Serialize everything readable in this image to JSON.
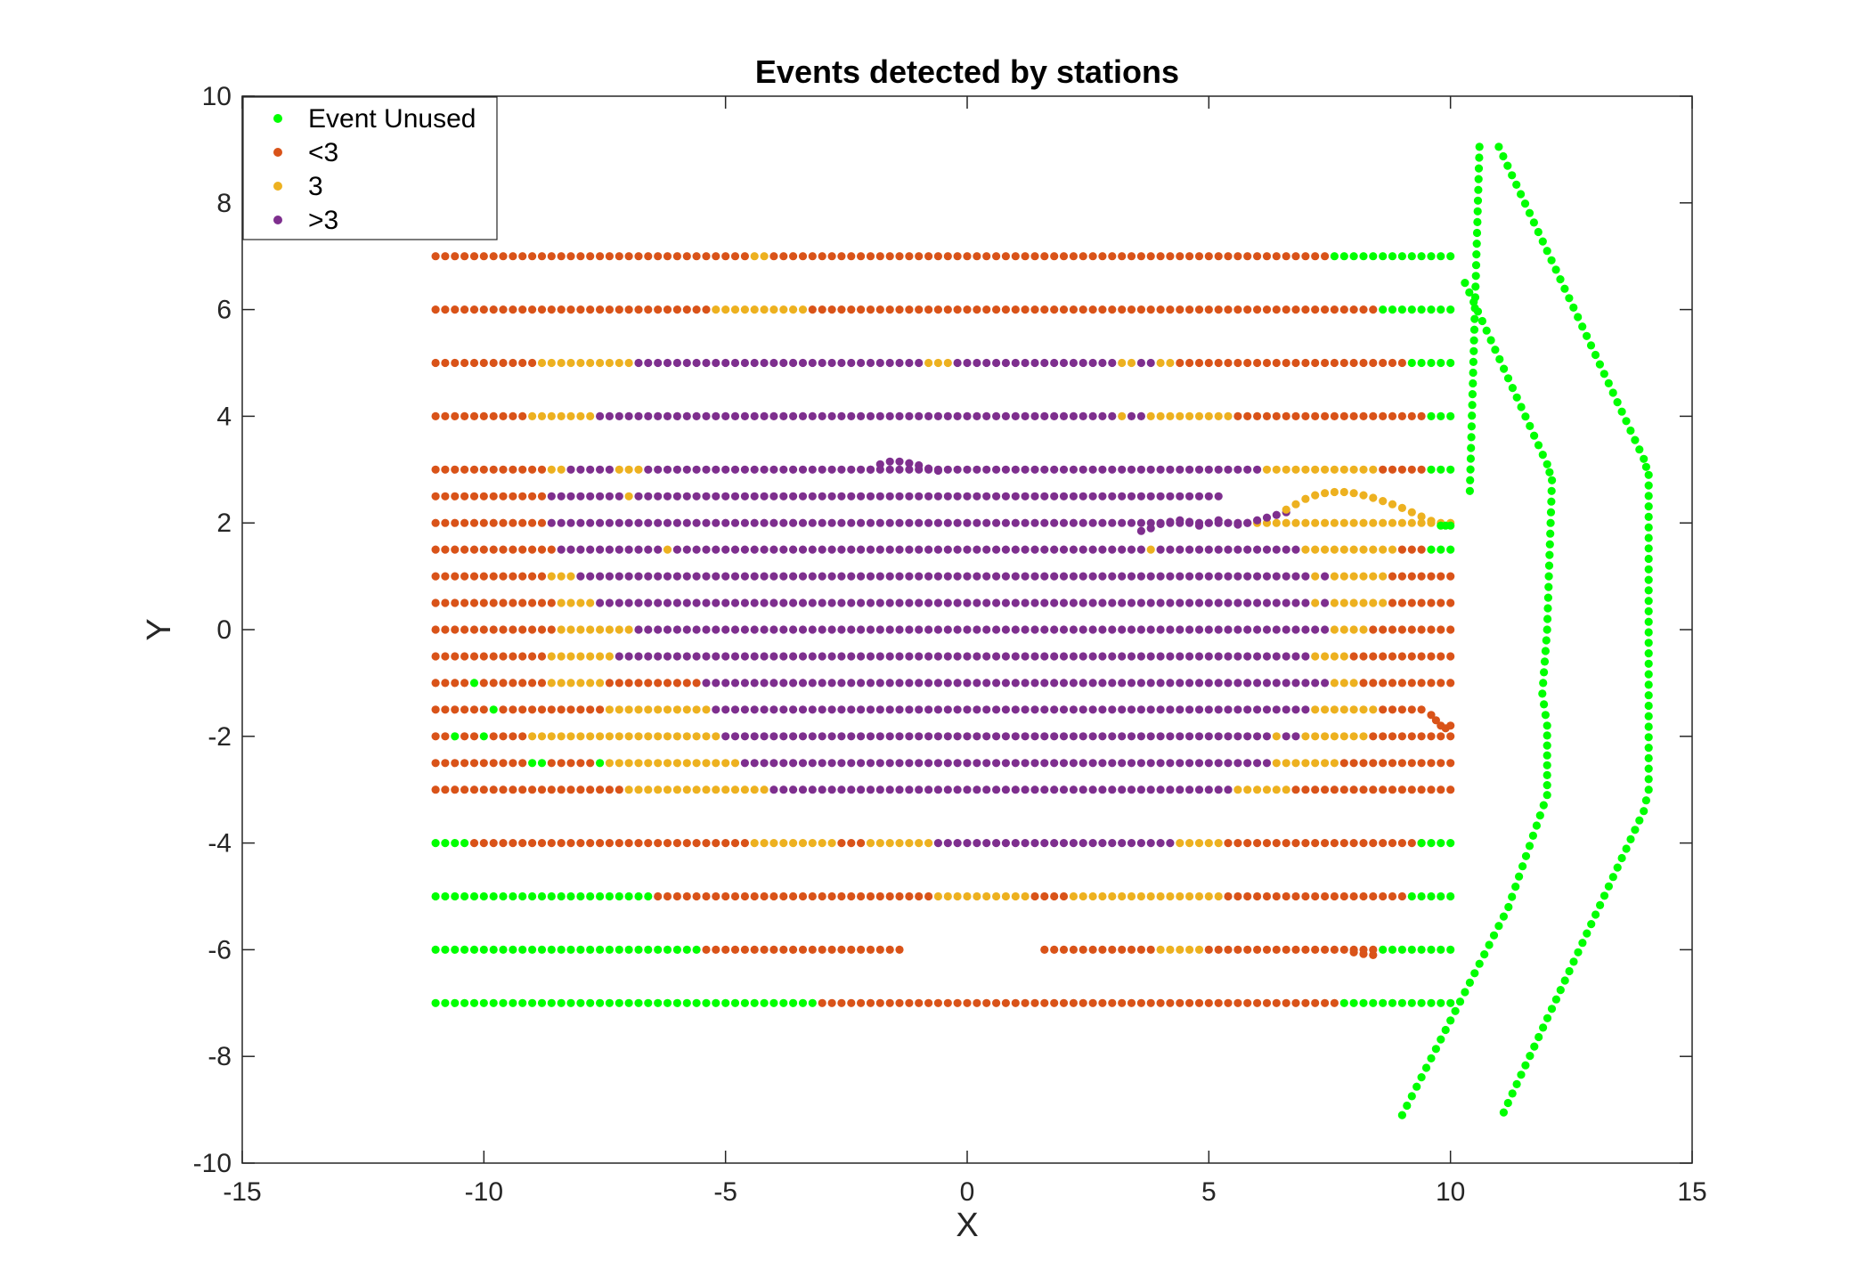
{
  "chart_data": {
    "type": "scatter",
    "title": "Events detected by stations",
    "xlabel": "X",
    "ylabel": "Y",
    "xlim": [
      -15,
      15
    ],
    "ylim": [
      -10,
      10
    ],
    "xticks": [
      "-15",
      "-10",
      "-5",
      "0",
      "5",
      "10",
      "15"
    ],
    "yticks": [
      "-10",
      "-8",
      "-6",
      "-4",
      "-2",
      "0",
      "2",
      "4",
      "6",
      "8",
      "10"
    ],
    "grid": false,
    "legend_position": "top-left",
    "legend": [
      {
        "key": "unused",
        "label": "Event Unused",
        "color": "#00ff00"
      },
      {
        "key": "lt3",
        "label": "<3",
        "color": "#d95319"
      },
      {
        "key": "eq3",
        "label": "3",
        "color": "#edb120"
      },
      {
        "key": "gt3",
        "label": ">3",
        "color": "#7e2f8e"
      }
    ],
    "point_spacing": 0.2,
    "rows": [
      {
        "y": 7,
        "segments": [
          [
            -11,
            7.6,
            "lt3"
          ],
          [
            7.6,
            10,
            "unused"
          ]
        ],
        "overrides": [
          [
            -4.4,
            -4.2,
            "eq3"
          ]
        ]
      },
      {
        "y": 6,
        "segments": [
          [
            -11,
            -5.2,
            "lt3"
          ],
          [
            -5.2,
            -3.2,
            "eq3"
          ],
          [
            -3.2,
            8.6,
            "lt3"
          ],
          [
            8.6,
            10,
            "unused"
          ]
        ]
      },
      {
        "y": 5,
        "segments": [
          [
            -11,
            -8.8,
            "lt3"
          ],
          [
            -8.8,
            -6.8,
            "eq3"
          ],
          [
            -6.8,
            -0.8,
            "gt3"
          ],
          [
            -0.8,
            -0.2,
            "eq3"
          ],
          [
            -0.2,
            3.2,
            "gt3"
          ],
          [
            3.2,
            3.6,
            "eq3"
          ],
          [
            3.6,
            4,
            "gt3"
          ],
          [
            4,
            4.4,
            "eq3"
          ],
          [
            4.4,
            9.2,
            "lt3"
          ],
          [
            9.2,
            10,
            "unused"
          ]
        ]
      },
      {
        "y": 4,
        "segments": [
          [
            -11,
            -9,
            "lt3"
          ],
          [
            -9,
            -7.6,
            "eq3"
          ],
          [
            -7.6,
            3.2,
            "gt3"
          ],
          [
            3.2,
            3.4,
            "eq3"
          ],
          [
            3.4,
            3.8,
            "gt3"
          ],
          [
            3.8,
            5.6,
            "eq3"
          ],
          [
            5.6,
            9.6,
            "lt3"
          ],
          [
            9.6,
            10,
            "unused"
          ]
        ]
      },
      {
        "y": 3,
        "segments": [
          [
            -11,
            -8.6,
            "lt3"
          ],
          [
            -8.6,
            -8.2,
            "eq3"
          ],
          [
            -8.2,
            -7.2,
            "gt3"
          ],
          [
            -7.2,
            -6.6,
            "eq3"
          ],
          [
            -6.6,
            6.2,
            "gt3"
          ],
          [
            6.2,
            8.6,
            "eq3"
          ],
          [
            8.6,
            9.6,
            "lt3"
          ],
          [
            9.6,
            10,
            "unused"
          ]
        ]
      },
      {
        "y": 2.5,
        "segments": [
          [
            -11,
            -8.6,
            "lt3"
          ],
          [
            -8.6,
            -7,
            "gt3"
          ],
          [
            -7,
            -6.8,
            "eq3"
          ],
          [
            -6.8,
            5.2,
            "gt3"
          ]
        ]
      },
      {
        "y": 2,
        "segments": [
          [
            -11,
            -8.6,
            "lt3"
          ],
          [
            -8.6,
            3.6,
            "gt3"
          ],
          [
            3.6,
            6,
            "gt3"
          ],
          [
            6,
            10,
            "eq3"
          ]
        ]
      },
      {
        "y": 1.5,
        "segments": [
          [
            -11,
            -8.4,
            "lt3"
          ],
          [
            -8.4,
            -6.2,
            "gt3"
          ],
          [
            -6.2,
            -6,
            "eq3"
          ],
          [
            -6,
            3.8,
            "gt3"
          ],
          [
            3.8,
            4,
            "eq3"
          ],
          [
            4,
            7,
            "gt3"
          ],
          [
            7,
            9,
            "eq3"
          ],
          [
            9,
            9.6,
            "lt3"
          ],
          [
            9.6,
            10,
            "unused"
          ]
        ]
      },
      {
        "y": 1,
        "segments": [
          [
            -11,
            -8.6,
            "lt3"
          ],
          [
            -8.6,
            -8,
            "eq3"
          ],
          [
            -8,
            7.2,
            "gt3"
          ],
          [
            7.2,
            7.4,
            "eq3"
          ],
          [
            7.4,
            7.6,
            "gt3"
          ],
          [
            7.6,
            8.8,
            "eq3"
          ],
          [
            8.8,
            10,
            "lt3"
          ]
        ]
      },
      {
        "y": 0.5,
        "segments": [
          [
            -11,
            -8.4,
            "lt3"
          ],
          [
            -8.4,
            -7.6,
            "eq3"
          ],
          [
            -7.6,
            7.2,
            "gt3"
          ],
          [
            7.2,
            7.4,
            "eq3"
          ],
          [
            7.4,
            7.6,
            "gt3"
          ],
          [
            7.6,
            8.8,
            "eq3"
          ],
          [
            8.8,
            10,
            "lt3"
          ]
        ]
      },
      {
        "y": 0,
        "segments": [
          [
            -11,
            -8.4,
            "lt3"
          ],
          [
            -8.4,
            -6.8,
            "eq3"
          ],
          [
            -6.8,
            7.6,
            "gt3"
          ],
          [
            7.6,
            8.4,
            "eq3"
          ],
          [
            8.4,
            10,
            "lt3"
          ]
        ]
      },
      {
        "y": -0.5,
        "segments": [
          [
            -11,
            -8.6,
            "lt3"
          ],
          [
            -8.6,
            -7.2,
            "eq3"
          ],
          [
            -7.2,
            7.2,
            "gt3"
          ],
          [
            7.2,
            8,
            "eq3"
          ],
          [
            8,
            10,
            "lt3"
          ]
        ]
      },
      {
        "y": -1,
        "segments": [
          [
            -11,
            -8.6,
            "lt3"
          ],
          [
            -8.6,
            -7.4,
            "eq3"
          ],
          [
            -7.4,
            -5.4,
            "lt3"
          ],
          [
            -5.4,
            7.6,
            "gt3"
          ],
          [
            7.6,
            8.2,
            "eq3"
          ],
          [
            8.2,
            10,
            "lt3"
          ]
        ],
        "overrides": [
          [
            -10.2,
            -10.2,
            "unused"
          ]
        ]
      },
      {
        "y": -1.5,
        "segments": [
          [
            -11,
            -7.4,
            "lt3"
          ],
          [
            -7.4,
            -5.2,
            "eq3"
          ],
          [
            -5.2,
            7.2,
            "gt3"
          ],
          [
            7.2,
            8.6,
            "eq3"
          ],
          [
            8.6,
            9.4,
            "lt3"
          ]
        ],
        "overrides": [
          [
            -9.8,
            -9.8,
            "unused"
          ]
        ]
      },
      {
        "y": -2,
        "segments": [
          [
            -11,
            -9,
            "lt3"
          ],
          [
            -9,
            -5,
            "eq3"
          ],
          [
            -5,
            6.4,
            "gt3"
          ],
          [
            6.4,
            6.6,
            "eq3"
          ],
          [
            6.6,
            7,
            "gt3"
          ],
          [
            7,
            8.4,
            "eq3"
          ],
          [
            8.4,
            10,
            "lt3"
          ]
        ],
        "overrides": [
          [
            -10.6,
            -10.6,
            "unused"
          ],
          [
            -10,
            -10,
            "unused"
          ]
        ]
      },
      {
        "y": -2.5,
        "segments": [
          [
            -11,
            -7.6,
            "lt3"
          ],
          [
            -7.6,
            -4.6,
            "eq3"
          ],
          [
            -4.6,
            6.4,
            "gt3"
          ],
          [
            6.4,
            7.8,
            "eq3"
          ],
          [
            7.8,
            10,
            "lt3"
          ]
        ],
        "overrides": [
          [
            -9,
            -8.8,
            "unused"
          ],
          [
            -7.6,
            -7.6,
            "unused"
          ]
        ]
      },
      {
        "y": -3,
        "segments": [
          [
            -11,
            -7,
            "lt3"
          ],
          [
            -7,
            -4,
            "eq3"
          ],
          [
            -4,
            5.6,
            "gt3"
          ],
          [
            5.6,
            6.8,
            "eq3"
          ],
          [
            6.8,
            10,
            "lt3"
          ]
        ]
      },
      {
        "y": -4,
        "segments": [
          [
            -11,
            -10.2,
            "unused"
          ],
          [
            -10.2,
            -4.4,
            "lt3"
          ],
          [
            -4.4,
            -2.6,
            "eq3"
          ],
          [
            -2.6,
            -2,
            "lt3"
          ],
          [
            -2,
            -0.6,
            "eq3"
          ],
          [
            -0.6,
            4.4,
            "gt3"
          ],
          [
            4.4,
            5.4,
            "eq3"
          ],
          [
            5.4,
            9.4,
            "lt3"
          ],
          [
            9.4,
            10,
            "unused"
          ]
        ]
      },
      {
        "y": -5,
        "segments": [
          [
            -11,
            -6.4,
            "unused"
          ],
          [
            -6.4,
            -0.6,
            "lt3"
          ],
          [
            -0.6,
            1.4,
            "eq3"
          ],
          [
            1.4,
            2.2,
            "lt3"
          ],
          [
            2.2,
            5.4,
            "eq3"
          ],
          [
            5.4,
            9.2,
            "lt3"
          ],
          [
            9.2,
            10,
            "unused"
          ]
        ]
      },
      {
        "y": -6,
        "segments": [
          [
            -11,
            -5.4,
            "unused"
          ],
          [
            -5.4,
            -1.4,
            "lt3"
          ],
          [
            1.6,
            4,
            "lt3"
          ],
          [
            4,
            5,
            "eq3"
          ],
          [
            5,
            8.6,
            "lt3"
          ],
          [
            8.6,
            10,
            "unused"
          ]
        ]
      },
      {
        "y": -7,
        "segments": [
          [
            -11,
            -3,
            "unused"
          ],
          [
            -3,
            7.8,
            "lt3"
          ],
          [
            7.8,
            10,
            "unused"
          ]
        ]
      }
    ],
    "curved_rows": [
      {
        "category": "gt3",
        "points": [
          [
            -2,
            3
          ],
          [
            -1.8,
            3.1
          ],
          [
            -1.6,
            3.15
          ],
          [
            -1.4,
            3.15
          ],
          [
            -1.2,
            3.12
          ],
          [
            -1,
            3.08
          ],
          [
            -0.8,
            3.02
          ],
          [
            -0.6,
            2.98
          ]
        ]
      },
      {
        "category": "gt3",
        "points": [
          [
            3.6,
            1.85
          ],
          [
            3.8,
            1.9
          ],
          [
            4,
            1.98
          ],
          [
            4.2,
            2.02
          ],
          [
            4.4,
            2.05
          ],
          [
            4.6,
            2.02
          ],
          [
            4.8,
            1.95
          ],
          [
            5,
            2
          ],
          [
            5.2,
            2.05
          ],
          [
            5.4,
            2
          ],
          [
            5.6,
            1.97
          ],
          [
            5.8,
            2
          ],
          [
            6,
            2.05
          ],
          [
            6.2,
            2.1
          ],
          [
            6.4,
            2.15
          ],
          [
            6.6,
            2.2
          ]
        ]
      },
      {
        "category": "eq3",
        "points": [
          [
            6.6,
            2.25
          ],
          [
            6.8,
            2.35
          ],
          [
            7,
            2.45
          ],
          [
            7.2,
            2.52
          ],
          [
            7.4,
            2.56
          ],
          [
            7.6,
            2.58
          ],
          [
            7.8,
            2.58
          ],
          [
            8,
            2.56
          ],
          [
            8.2,
            2.52
          ],
          [
            8.4,
            2.47
          ],
          [
            8.6,
            2.41
          ],
          [
            8.8,
            2.35
          ],
          [
            9,
            2.28
          ],
          [
            9.2,
            2.2
          ],
          [
            9.4,
            2.12
          ],
          [
            9.6,
            2.04
          ]
        ]
      },
      {
        "category": "lt3",
        "points": [
          [
            9.6,
            -1.6
          ],
          [
            9.7,
            -1.7
          ],
          [
            9.8,
            -1.8
          ],
          [
            9.9,
            -1.85
          ],
          [
            10,
            -1.8
          ]
        ]
      },
      {
        "category": "unused",
        "points": [
          [
            9.8,
            1.95
          ],
          [
            9.9,
            1.95
          ],
          [
            10,
            1.95
          ]
        ]
      },
      {
        "category": "lt3",
        "points": [
          [
            8,
            -6.05
          ],
          [
            8.2,
            -6.08
          ],
          [
            8.4,
            -6.1
          ]
        ]
      }
    ],
    "boundary_lines": [
      {
        "category": "unused",
        "points": [
          [
            10.3,
            6.5
          ],
          [
            12,
            3.1
          ],
          [
            12.1,
            2.8
          ],
          [
            12,
            0
          ],
          [
            11.9,
            -1.2
          ],
          [
            12,
            -1.8
          ],
          [
            12,
            -3.1
          ],
          [
            11.2,
            -5.2
          ],
          [
            9,
            -9.1
          ]
        ]
      },
      {
        "category": "unused",
        "points": [
          [
            11,
            9.05
          ],
          [
            14,
            3.2
          ],
          [
            14.1,
            2.9
          ],
          [
            14.1,
            -3
          ],
          [
            14,
            -3.4
          ],
          [
            11.1,
            -9.05
          ]
        ]
      },
      {
        "category": "unused",
        "points": [
          [
            10.6,
            9.05
          ],
          [
            10.4,
            2.6
          ]
        ]
      }
    ]
  }
}
